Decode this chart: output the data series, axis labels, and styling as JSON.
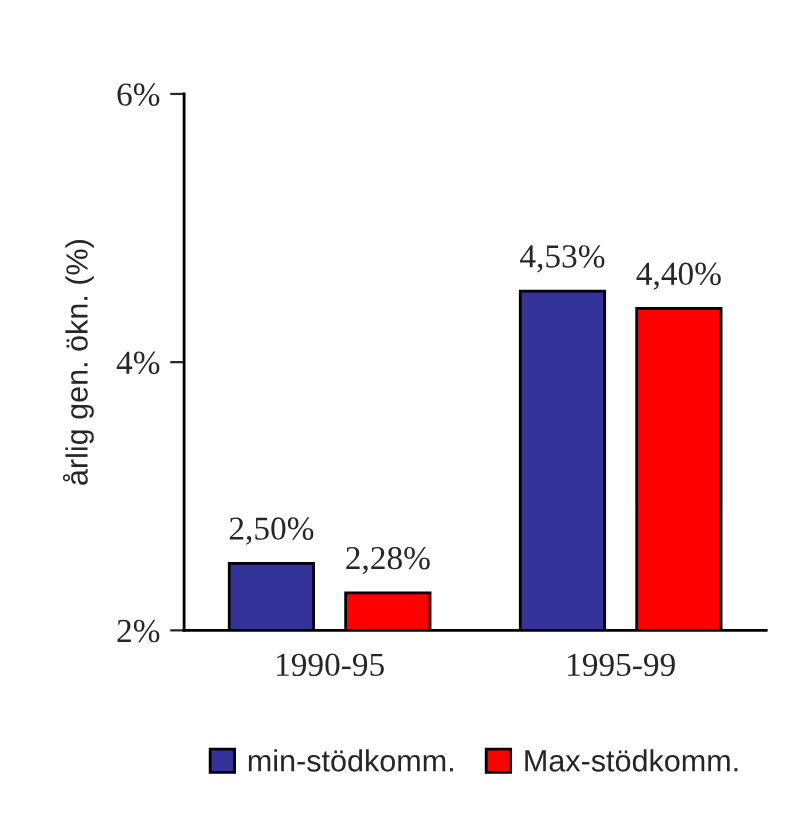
{
  "chart_data": {
    "type": "bar",
    "ylabel": "årlig gen. ökn. (%)",
    "categories": [
      "1990-95",
      "1995-99"
    ],
    "series": [
      {
        "name": "min-stödkomm.",
        "color": "#333399",
        "values": [
          2.5,
          4.53
        ],
        "value_labels": [
          "2,50%",
          "4,53%"
        ]
      },
      {
        "name": "Max-stödkomm.",
        "color": "#ff0000",
        "values": [
          2.28,
          4.4
        ],
        "value_labels": [
          "2,28%",
          "4,40%"
        ]
      }
    ],
    "ylim": [
      2,
      6
    ],
    "yticks": [
      {
        "value": 2,
        "label": "2%"
      },
      {
        "value": 4,
        "label": "4%"
      },
      {
        "value": 6,
        "label": "6%"
      }
    ],
    "grid": false,
    "legend": "bottom"
  }
}
